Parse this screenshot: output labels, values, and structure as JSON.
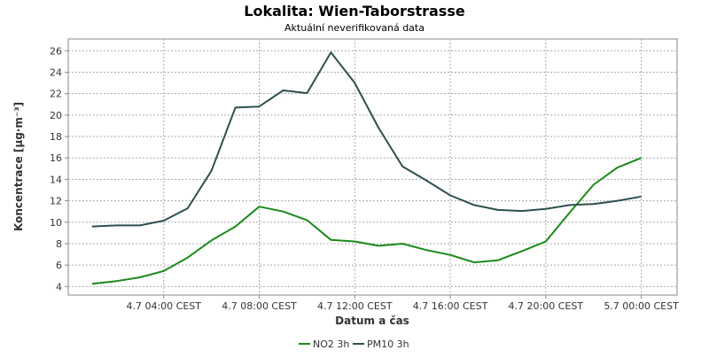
{
  "chart_data": {
    "type": "line",
    "title": "Lokalita: Wien-Taborstrasse",
    "subtitle": "Aktuální neverifikovaná data",
    "xlabel": "Datum a čas",
    "ylabel": "Koncentrace [µg·m⁻³]",
    "ylim": [
      3.2,
      27.1
    ],
    "yticks": [
      4,
      6,
      8,
      10,
      12,
      14,
      16,
      18,
      20,
      22,
      24,
      26
    ],
    "xlim": [
      -1.0,
      24.5
    ],
    "xticks": [
      {
        "x": 3,
        "label": "4.7 04:00 CEST"
      },
      {
        "x": 7,
        "label": "4.7 08:00 CEST"
      },
      {
        "x": 11,
        "label": "4.7 12:00 CEST"
      },
      {
        "x": 15,
        "label": "4.7 16:00 CEST"
      },
      {
        "x": 19,
        "label": "4.7 20:00 CEST"
      },
      {
        "x": 23,
        "label": "5.7 00:00 CEST"
      }
    ],
    "x": [
      0,
      1,
      2,
      3,
      4,
      5,
      6,
      7,
      8,
      9,
      10,
      11,
      12,
      13,
      14,
      15,
      16,
      17,
      18,
      19,
      20,
      21,
      22,
      23
    ],
    "grid": true,
    "legend_position": "bottom",
    "series": [
      {
        "name": "NO2 3h",
        "color": "#1a8a1a",
        "values": [
          4.25,
          4.5,
          4.85,
          5.45,
          6.7,
          8.3,
          9.6,
          11.45,
          11.0,
          10.2,
          8.35,
          8.2,
          7.8,
          8.0,
          7.4,
          6.95,
          6.25,
          6.45,
          7.3,
          8.2,
          10.9,
          13.5,
          15.1,
          16.0
        ]
      },
      {
        "name": "PM10 3h",
        "color": "#2f4f4f",
        "values": [
          9.6,
          9.7,
          9.7,
          10.15,
          11.3,
          14.8,
          20.7,
          20.8,
          22.3,
          22.05,
          25.85,
          23.0,
          18.8,
          15.2,
          13.9,
          12.5,
          11.6,
          11.15,
          11.05,
          11.25,
          11.6,
          11.7,
          12.0,
          12.4
        ]
      }
    ]
  }
}
